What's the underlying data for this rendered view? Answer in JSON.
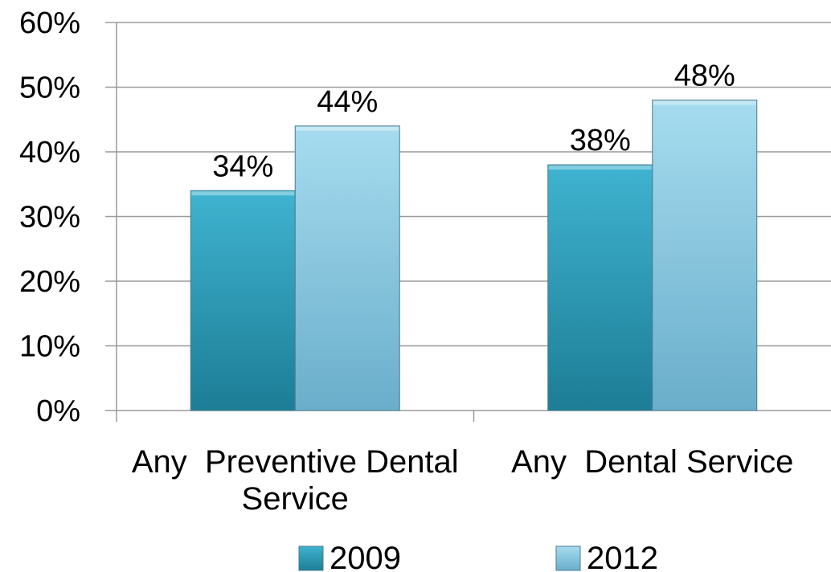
{
  "chart_data": {
    "type": "bar",
    "categories": [
      "Any Preventive Dental Service",
      "Any Dental Service"
    ],
    "category_lines": [
      [
        "Any  Preventive Dental",
        "Service"
      ],
      [
        "Any  Dental Service"
      ]
    ],
    "series": [
      {
        "name": "2009",
        "values": [
          34,
          38
        ],
        "labels": [
          "34%",
          "38%"
        ],
        "color": "#2a9ab8"
      },
      {
        "name": "2012",
        "values": [
          44,
          48
        ],
        "labels": [
          "44%",
          "48%"
        ],
        "color": "#8ed0e6"
      }
    ],
    "ylim": [
      0,
      60
    ],
    "yticks": [
      0,
      10,
      20,
      30,
      40,
      50,
      60
    ],
    "ytick_labels": [
      "0%",
      "10%",
      "20%",
      "30%",
      "40%",
      "50%",
      "60%"
    ],
    "grid": true,
    "legend_position": "bottom",
    "title": "",
    "xlabel": "",
    "ylabel": ""
  }
}
